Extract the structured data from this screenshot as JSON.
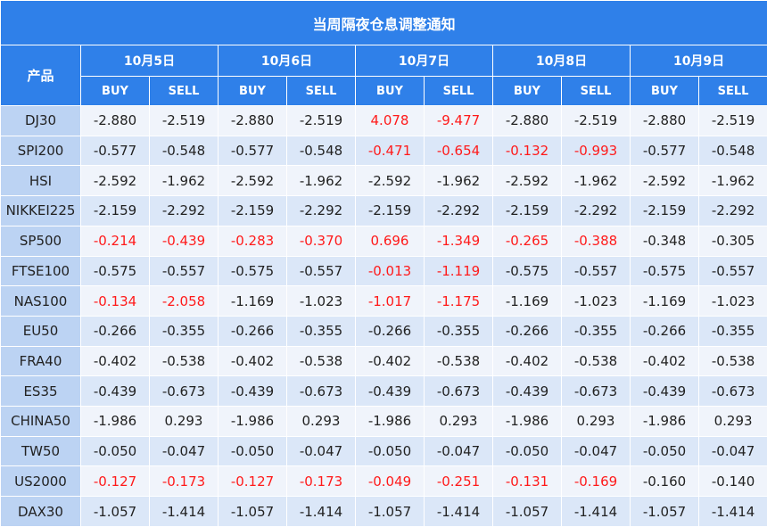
{
  "title": "当周隔夜仓息调整通知",
  "product_header": "产品",
  "dates": [
    "10月5日",
    "10月6日",
    "10月7日",
    "10月8日",
    "10月9日"
  ],
  "buy_label": "BUY",
  "sell_label": "SELL",
  "colors": {
    "header_bg": "#2f80e9",
    "name_bg": "#bcd3f3",
    "row_light": "#f0f4fb",
    "row_dark": "#dbe7f8",
    "highlight": "#ff1a1a"
  },
  "rows": [
    {
      "name": "DJ30",
      "values": [
        "-2.880",
        "-2.519",
        "-2.880",
        "-2.519",
        "4.078",
        "-9.477",
        "-2.880",
        "-2.519",
        "-2.880",
        "-2.519"
      ],
      "highlight": [
        false,
        false,
        false,
        false,
        true,
        true,
        false,
        false,
        false,
        false
      ]
    },
    {
      "name": "SPI200",
      "values": [
        "-0.577",
        "-0.548",
        "-0.577",
        "-0.548",
        "-0.471",
        "-0.654",
        "-0.132",
        "-0.993",
        "-0.577",
        "-0.548"
      ],
      "highlight": [
        false,
        false,
        false,
        false,
        true,
        true,
        true,
        true,
        false,
        false
      ]
    },
    {
      "name": "HSI",
      "values": [
        "-2.592",
        "-1.962",
        "-2.592",
        "-1.962",
        "-2.592",
        "-1.962",
        "-2.592",
        "-1.962",
        "-2.592",
        "-1.962"
      ],
      "highlight": [
        false,
        false,
        false,
        false,
        false,
        false,
        false,
        false,
        false,
        false
      ]
    },
    {
      "name": "NIKKEI225",
      "values": [
        "-2.159",
        "-2.292",
        "-2.159",
        "-2.292",
        "-2.159",
        "-2.292",
        "-2.159",
        "-2.292",
        "-2.159",
        "-2.292"
      ],
      "highlight": [
        false,
        false,
        false,
        false,
        false,
        false,
        false,
        false,
        false,
        false
      ]
    },
    {
      "name": "SP500",
      "values": [
        "-0.214",
        "-0.439",
        "-0.283",
        "-0.370",
        "0.696",
        "-1.349",
        "-0.265",
        "-0.388",
        "-0.348",
        "-0.305"
      ],
      "highlight": [
        true,
        true,
        true,
        true,
        true,
        true,
        true,
        true,
        false,
        false
      ]
    },
    {
      "name": "FTSE100",
      "values": [
        "-0.575",
        "-0.557",
        "-0.575",
        "-0.557",
        "-0.013",
        "-1.119",
        "-0.575",
        "-0.557",
        "-0.575",
        "-0.557"
      ],
      "highlight": [
        false,
        false,
        false,
        false,
        true,
        true,
        false,
        false,
        false,
        false
      ]
    },
    {
      "name": "NAS100",
      "values": [
        "-0.134",
        "-2.058",
        "-1.169",
        "-1.023",
        "-1.017",
        "-1.175",
        "-1.169",
        "-1.023",
        "-1.169",
        "-1.023"
      ],
      "highlight": [
        true,
        true,
        false,
        false,
        true,
        true,
        false,
        false,
        false,
        false
      ]
    },
    {
      "name": "EU50",
      "values": [
        "-0.266",
        "-0.355",
        "-0.266",
        "-0.355",
        "-0.266",
        "-0.355",
        "-0.266",
        "-0.355",
        "-0.266",
        "-0.355"
      ],
      "highlight": [
        false,
        false,
        false,
        false,
        false,
        false,
        false,
        false,
        false,
        false
      ]
    },
    {
      "name": "FRA40",
      "values": [
        "-0.402",
        "-0.538",
        "-0.402",
        "-0.538",
        "-0.402",
        "-0.538",
        "-0.402",
        "-0.538",
        "-0.402",
        "-0.538"
      ],
      "highlight": [
        false,
        false,
        false,
        false,
        false,
        false,
        false,
        false,
        false,
        false
      ]
    },
    {
      "name": "ES35",
      "values": [
        "-0.439",
        "-0.673",
        "-0.439",
        "-0.673",
        "-0.439",
        "-0.673",
        "-0.439",
        "-0.673",
        "-0.439",
        "-0.673"
      ],
      "highlight": [
        false,
        false,
        false,
        false,
        false,
        false,
        false,
        false,
        false,
        false
      ]
    },
    {
      "name": "CHINA50",
      "values": [
        "-1.986",
        "0.293",
        "-1.986",
        "0.293",
        "-1.986",
        "0.293",
        "-1.986",
        "0.293",
        "-1.986",
        "0.293"
      ],
      "highlight": [
        false,
        false,
        false,
        false,
        false,
        false,
        false,
        false,
        false,
        false
      ]
    },
    {
      "name": "TW50",
      "values": [
        "-0.050",
        "-0.047",
        "-0.050",
        "-0.047",
        "-0.050",
        "-0.047",
        "-0.050",
        "-0.047",
        "-0.050",
        "-0.047"
      ],
      "highlight": [
        false,
        false,
        false,
        false,
        false,
        false,
        false,
        false,
        false,
        false
      ]
    },
    {
      "name": "US2000",
      "values": [
        "-0.127",
        "-0.173",
        "-0.127",
        "-0.173",
        "-0.049",
        "-0.251",
        "-0.131",
        "-0.169",
        "-0.160",
        "-0.140"
      ],
      "highlight": [
        true,
        true,
        true,
        true,
        true,
        true,
        true,
        true,
        false,
        false
      ]
    },
    {
      "name": "DAX30",
      "values": [
        "-1.057",
        "-1.414",
        "-1.057",
        "-1.414",
        "-1.057",
        "-1.414",
        "-1.057",
        "-1.414",
        "-1.057",
        "-1.414"
      ],
      "highlight": [
        false,
        false,
        false,
        false,
        false,
        false,
        false,
        false,
        false,
        false
      ]
    }
  ]
}
